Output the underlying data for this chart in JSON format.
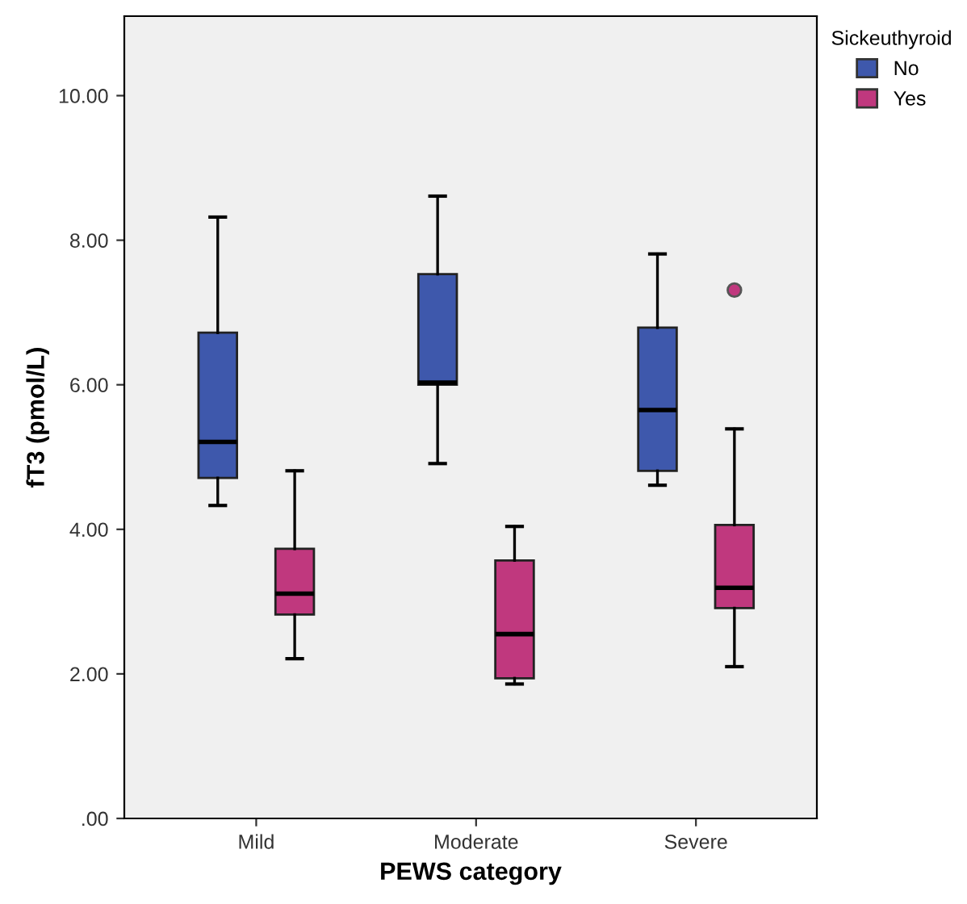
{
  "chart_data": {
    "type": "box",
    "xlabel": "PEWS category",
    "ylabel": "fT3 (pmol/L)",
    "legend_title": "Sickeuthyroid",
    "categories": [
      "Mild",
      "Moderate",
      "Severe"
    ],
    "series": [
      {
        "name": "No",
        "color": "#3e58ac",
        "boxes": [
          {
            "low": 4.33,
            "q1": 4.71,
            "median": 5.21,
            "q3": 6.72,
            "high": 8.32
          },
          {
            "low": 4.91,
            "q1": 6.0,
            "median": 6.03,
            "q3": 7.53,
            "high": 8.61
          },
          {
            "low": 4.61,
            "q1": 4.81,
            "median": 5.65,
            "q3": 6.79,
            "high": 7.81
          }
        ]
      },
      {
        "name": "Yes",
        "color": "#c0387e",
        "boxes": [
          {
            "low": 2.21,
            "q1": 2.82,
            "median": 3.11,
            "q3": 3.73,
            "high": 4.81
          },
          {
            "low": 1.86,
            "q1": 1.94,
            "median": 2.55,
            "q3": 3.57,
            "high": 4.04
          },
          {
            "low": 2.1,
            "q1": 2.91,
            "median": 3.19,
            "q3": 4.06,
            "high": 5.39,
            "outliers": [
              7.31
            ]
          }
        ]
      }
    ],
    "ylim": [
      0,
      11.1
    ],
    "yticks": [
      {
        "value": 0,
        "label": ".00"
      },
      {
        "value": 2,
        "label": "2.00"
      },
      {
        "value": 4,
        "label": "4.00"
      },
      {
        "value": 6,
        "label": "6.00"
      },
      {
        "value": 8,
        "label": "8.00"
      },
      {
        "value": 10,
        "label": "10.00"
      }
    ],
    "grid": false,
    "legend": "top right"
  }
}
